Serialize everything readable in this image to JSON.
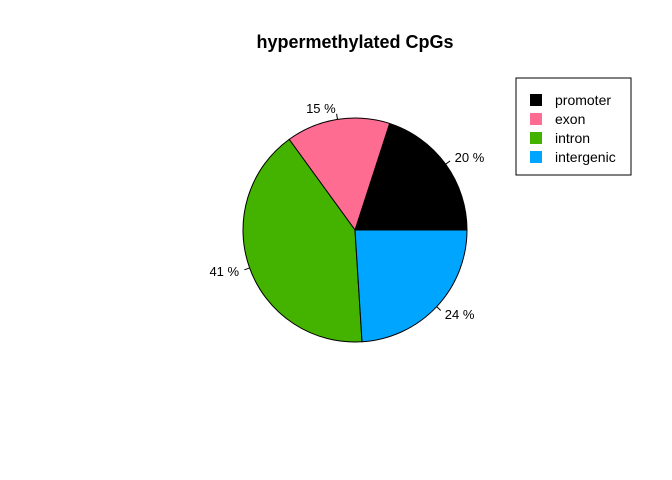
{
  "chart_data": {
    "type": "pie",
    "title": "hypermethylated CpGs",
    "slices": [
      {
        "name": "promoter",
        "value": 20,
        "label": "20 %",
        "color": "#000000"
      },
      {
        "name": "exon",
        "value": 15,
        "label": "15 %",
        "color": "#FF6C91"
      },
      {
        "name": "intron",
        "value": 41,
        "label": "41 %",
        "color": "#44B300"
      },
      {
        "name": "intergenic",
        "value": 24,
        "label": "24 %",
        "color": "#00A5FF"
      }
    ],
    "legend": {
      "placement": "top-right",
      "entries": [
        "promoter",
        "exon",
        "intron",
        "intergenic"
      ]
    }
  }
}
